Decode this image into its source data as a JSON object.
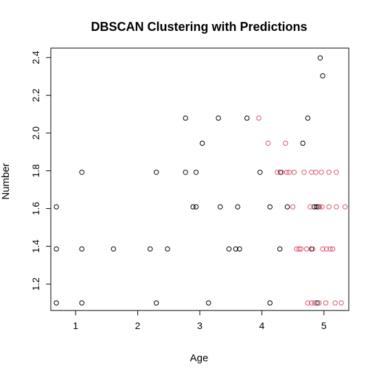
{
  "chart_data": {
    "type": "scatter",
    "title": "DBSCAN Clustering with Predictions",
    "xlabel": "Age",
    "ylabel": "Number",
    "xlim": [
      0.6,
      5.4
    ],
    "ylim": [
      1.06,
      2.45
    ],
    "x_ticks": [
      1,
      2,
      3,
      4,
      5
    ],
    "y_ticks": [
      1.2,
      1.4,
      1.6,
      1.8,
      2.0,
      2.2,
      2.4
    ],
    "grid": false,
    "legend": "none",
    "series": [
      {
        "color": "#000000",
        "points": [
          [
            0.69,
            1.1
          ],
          [
            0.69,
            1.386
          ],
          [
            0.69,
            1.609
          ],
          [
            1.1,
            1.1
          ],
          [
            1.1,
            1.386
          ],
          [
            1.1,
            1.792
          ],
          [
            1.61,
            1.386
          ],
          [
            2.2,
            1.386
          ],
          [
            2.3,
            1.1
          ],
          [
            2.3,
            1.792
          ],
          [
            2.48,
            1.386
          ],
          [
            2.77,
            1.792
          ],
          [
            2.77,
            2.079
          ],
          [
            2.89,
            1.609
          ],
          [
            2.94,
            1.609
          ],
          [
            2.94,
            1.792
          ],
          [
            3.04,
            1.946
          ],
          [
            3.14,
            1.1
          ],
          [
            3.3,
            2.079
          ],
          [
            3.33,
            1.609
          ],
          [
            3.47,
            1.386
          ],
          [
            3.58,
            1.386
          ],
          [
            3.61,
            1.609
          ],
          [
            3.64,
            1.386
          ],
          [
            3.76,
            2.079
          ],
          [
            3.97,
            1.792
          ],
          [
            4.13,
            1.1
          ],
          [
            4.13,
            1.609
          ],
          [
            4.29,
            1.386
          ],
          [
            4.3,
            1.792
          ],
          [
            4.41,
            1.609
          ],
          [
            4.66,
            1.946
          ],
          [
            4.74,
            2.079
          ],
          [
            4.8,
            1.386
          ],
          [
            4.84,
            1.609
          ],
          [
            4.88,
            1.609
          ],
          [
            4.89,
            1.1
          ],
          [
            4.91,
            1.609
          ],
          [
            4.94,
            2.398
          ],
          [
            4.98,
            2.303
          ]
        ]
      },
      {
        "color": "#DF536B",
        "points": [
          [
            3.95,
            2.079
          ],
          [
            4.1,
            1.946
          ],
          [
            4.25,
            1.792
          ],
          [
            4.32,
            1.792
          ],
          [
            4.38,
            1.946
          ],
          [
            4.4,
            1.792
          ],
          [
            4.44,
            1.792
          ],
          [
            4.5,
            1.609
          ],
          [
            4.52,
            1.792
          ],
          [
            4.56,
            1.386
          ],
          [
            4.6,
            1.386
          ],
          [
            4.63,
            1.386
          ],
          [
            4.68,
            1.792
          ],
          [
            4.72,
            1.386
          ],
          [
            4.74,
            1.1
          ],
          [
            4.78,
            1.609
          ],
          [
            4.8,
            1.1
          ],
          [
            4.8,
            1.792
          ],
          [
            4.82,
            1.386
          ],
          [
            4.85,
            1.1
          ],
          [
            4.87,
            1.792
          ],
          [
            4.92,
            1.1
          ],
          [
            4.93,
            1.609
          ],
          [
            4.96,
            1.792
          ],
          [
            4.97,
            1.609
          ],
          [
            4.98,
            1.386
          ],
          [
            5.03,
            1.1
          ],
          [
            5.04,
            1.386
          ],
          [
            5.08,
            1.609
          ],
          [
            5.08,
            1.792
          ],
          [
            5.1,
            1.386
          ],
          [
            5.14,
            1.386
          ],
          [
            5.18,
            1.1
          ],
          [
            5.2,
            1.609
          ],
          [
            5.2,
            1.792
          ],
          [
            5.28,
            1.1
          ],
          [
            5.34,
            1.609
          ]
        ]
      }
    ]
  }
}
